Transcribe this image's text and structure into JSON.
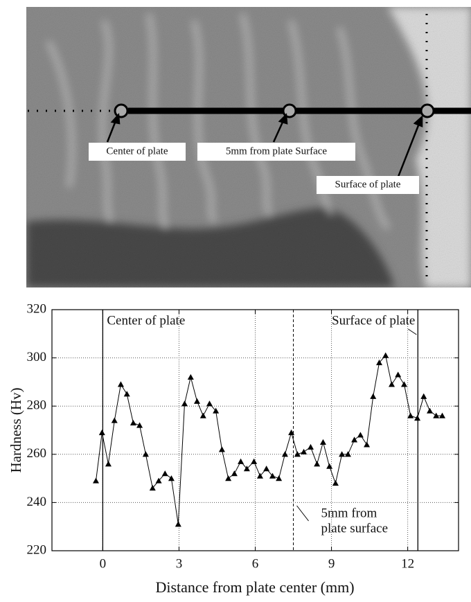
{
  "photo": {
    "labels": [
      "Center of plate",
      "5mm from plate Surface",
      "Surface of plate"
    ]
  },
  "chart_data": {
    "type": "line",
    "x_label": "Distance from plate center (mm)",
    "y_label": "Hardness (Hv)",
    "x": [
      -0.27,
      -0.03,
      0.22,
      0.46,
      0.71,
      0.95,
      1.2,
      1.45,
      1.69,
      1.96,
      2.2,
      2.45,
      2.7,
      2.97,
      3.22,
      3.46,
      3.71,
      3.95,
      4.2,
      4.45,
      4.69,
      4.94,
      5.18,
      5.43,
      5.67,
      5.95,
      6.19,
      6.44,
      6.68,
      6.93,
      7.17,
      7.42,
      7.66,
      7.91,
      8.18,
      8.43,
      8.67,
      8.92,
      9.16,
      9.41,
      9.65,
      9.9,
      10.14,
      10.39,
      10.64,
      10.88,
      11.13,
      11.37,
      11.62,
      11.86,
      12.11,
      12.38,
      12.63,
      12.87,
      13.12,
      13.36
    ],
    "values": [
      249,
      269,
      256,
      274,
      289,
      285,
      273,
      272,
      260,
      246,
      249,
      252,
      250,
      231,
      281,
      292,
      282,
      276,
      281,
      278,
      262,
      250,
      252,
      257,
      254,
      257,
      251,
      254,
      251,
      250,
      260,
      269,
      260,
      261,
      263,
      256,
      265,
      255,
      248,
      260,
      260,
      266,
      268,
      264,
      284,
      298,
      301,
      289,
      293,
      289,
      276,
      275,
      284,
      278,
      276,
      276
    ],
    "color": "#000000",
    "xlim": [
      -2,
      14
    ],
    "ylim": [
      220,
      320
    ],
    "xticks": [
      0,
      3,
      6,
      9,
      12
    ],
    "yticks": [
      220,
      240,
      260,
      280,
      300,
      320
    ],
    "grid": true,
    "markers": [
      {
        "x": 0,
        "style": "solid",
        "label": [
          "Center of plate"
        ]
      },
      {
        "x": 12.4,
        "style": "solid",
        "label": [
          "Surface of plate"
        ]
      },
      {
        "x": 7.5,
        "style": "dashed",
        "label": [
          "5mm from",
          "plate surface"
        ]
      }
    ]
  }
}
